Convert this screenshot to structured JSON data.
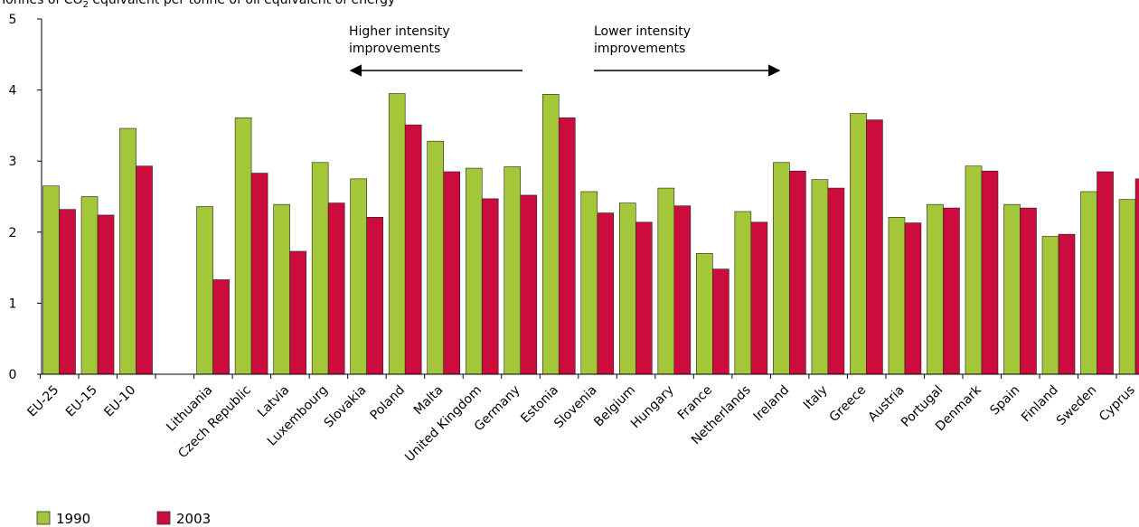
{
  "chart_data": {
    "type": "bar",
    "ylabel_prefix": "Tonnes of CO",
    "ylabel_sub": "2",
    "ylabel_suffix": " equivalent per tonne of oil equivalent of energy",
    "ylim": [
      0,
      5
    ],
    "yticks": [
      "0",
      "1",
      "2",
      "3",
      "4",
      "5"
    ],
    "grid": false,
    "legend_position": "bottom-left",
    "categories": [
      "EU-25",
      "EU-15",
      "EU-10",
      "",
      "Lithuania",
      "Czech Republic",
      "Latvia",
      "Luxembourg",
      "Slovakia",
      "Poland",
      "Malta",
      "United Kingdom",
      "Germany",
      "Estonia",
      "Slovenia",
      "Belgium",
      "Hungary",
      "France",
      "Netherlands",
      "Ireland",
      "Italy",
      "Greece",
      "Austria",
      "Portugal",
      "Denmark",
      "Spain",
      "Finland",
      "Sweden",
      "Cyprus"
    ],
    "series": [
      {
        "name": "1990",
        "color": "#a4c639",
        "values": [
          2.65,
          2.5,
          3.46,
          null,
          2.36,
          3.61,
          2.39,
          2.98,
          2.75,
          3.95,
          3.28,
          2.9,
          2.92,
          3.94,
          2.57,
          2.41,
          2.62,
          1.7,
          2.29,
          2.98,
          2.74,
          3.67,
          2.21,
          2.39,
          2.93,
          2.39,
          1.94,
          2.57,
          2.46
        ]
      },
      {
        "name": "2003",
        "color": "#cc0c3c",
        "values": [
          2.32,
          2.24,
          2.93,
          null,
          1.33,
          2.83,
          1.73,
          2.41,
          2.21,
          3.51,
          2.85,
          2.47,
          2.52,
          3.61,
          2.27,
          2.14,
          2.37,
          1.48,
          2.14,
          2.86,
          2.62,
          3.58,
          2.13,
          2.34,
          2.86,
          2.34,
          1.97,
          2.85,
          2.75
        ]
      }
    ],
    "annotations": [
      {
        "lines": [
          "Higher intensity",
          "improvements"
        ],
        "arrow": "left"
      },
      {
        "lines": [
          "Lower intensity",
          "improvements"
        ],
        "arrow": "right"
      }
    ]
  }
}
